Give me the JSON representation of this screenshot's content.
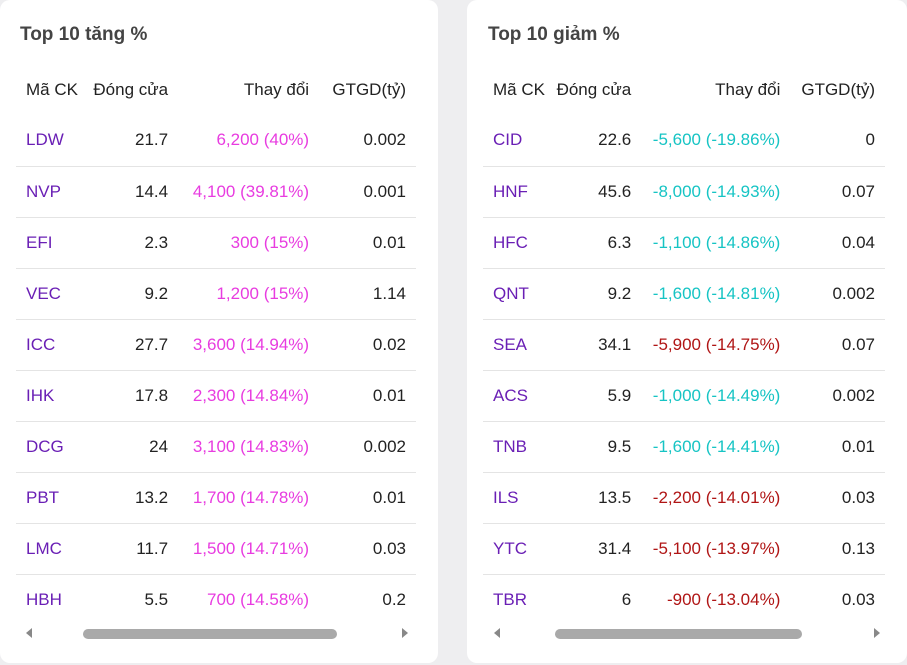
{
  "gainers": {
    "title": "Top 10 tăng %",
    "headers": {
      "code": "Mã CK",
      "close": "Đóng cửa",
      "change": "Thay đổi",
      "value": "GTGD(tỷ)"
    },
    "rows": [
      {
        "code": "LDW",
        "close": "21.7",
        "change": "6,200 (40%)",
        "value": "0.002",
        "color": "#e83ce0"
      },
      {
        "code": "NVP",
        "close": "14.4",
        "change": "4,100 (39.81%)",
        "value": "0.001",
        "color": "#e83ce0"
      },
      {
        "code": "EFI",
        "close": "2.3",
        "change": "300 (15%)",
        "value": "0.01",
        "color": "#e83ce0"
      },
      {
        "code": "VEC",
        "close": "9.2",
        "change": "1,200 (15%)",
        "value": "1.14",
        "color": "#e83ce0"
      },
      {
        "code": "ICC",
        "close": "27.7",
        "change": "3,600 (14.94%)",
        "value": "0.02",
        "color": "#e83ce0"
      },
      {
        "code": "IHK",
        "close": "17.8",
        "change": "2,300 (14.84%)",
        "value": "0.01",
        "color": "#e83ce0"
      },
      {
        "code": "DCG",
        "close": "24",
        "change": "3,100 (14.83%)",
        "value": "0.002",
        "color": "#e83ce0"
      },
      {
        "code": "PBT",
        "close": "13.2",
        "change": "1,700 (14.78%)",
        "value": "0.01",
        "color": "#e83ce0"
      },
      {
        "code": "LMC",
        "close": "11.7",
        "change": "1,500 (14.71%)",
        "value": "0.03",
        "color": "#e83ce0"
      },
      {
        "code": "HBH",
        "close": "5.5",
        "change": "700 (14.58%)",
        "value": "0.2",
        "color": "#e83ce0"
      }
    ]
  },
  "losers": {
    "title": "Top 10 giảm %",
    "headers": {
      "code": "Mã CK",
      "close": "Đóng cửa",
      "change": "Thay đổi",
      "value": "GTGD(tỷ)"
    },
    "rows": [
      {
        "code": "CID",
        "close": "22.6",
        "change": "-5,600 (-19.86%)",
        "value": "0",
        "color": "#16c4c4"
      },
      {
        "code": "HNF",
        "close": "45.6",
        "change": "-8,000 (-14.93%)",
        "value": "0.07",
        "color": "#16c4c4"
      },
      {
        "code": "HFC",
        "close": "6.3",
        "change": "-1,100 (-14.86%)",
        "value": "0.04",
        "color": "#16c4c4"
      },
      {
        "code": "QNT",
        "close": "9.2",
        "change": "-1,600 (-14.81%)",
        "value": "0.002",
        "color": "#16c4c4"
      },
      {
        "code": "SEA",
        "close": "34.1",
        "change": "-5,900 (-14.75%)",
        "value": "0.07",
        "color": "#b01515"
      },
      {
        "code": "ACS",
        "close": "5.9",
        "change": "-1,000 (-14.49%)",
        "value": "0.002",
        "color": "#16c4c4"
      },
      {
        "code": "TNB",
        "close": "9.5",
        "change": "-1,600 (-14.41%)",
        "value": "0.01",
        "color": "#16c4c4"
      },
      {
        "code": "ILS",
        "close": "13.5",
        "change": "-2,200 (-14.01%)",
        "value": "0.03",
        "color": "#b01515"
      },
      {
        "code": "YTC",
        "close": "31.4",
        "change": "-5,100 (-13.97%)",
        "value": "0.13",
        "color": "#b01515"
      },
      {
        "code": "TBR",
        "close": "6",
        "change": "-900 (-13.04%)",
        "value": "0.03",
        "color": "#b01515"
      }
    ]
  },
  "colors": {
    "code": "#6a1fb5",
    "up": "#e83ce0",
    "down_cyan": "#16c4c4",
    "down_red": "#b01515"
  }
}
